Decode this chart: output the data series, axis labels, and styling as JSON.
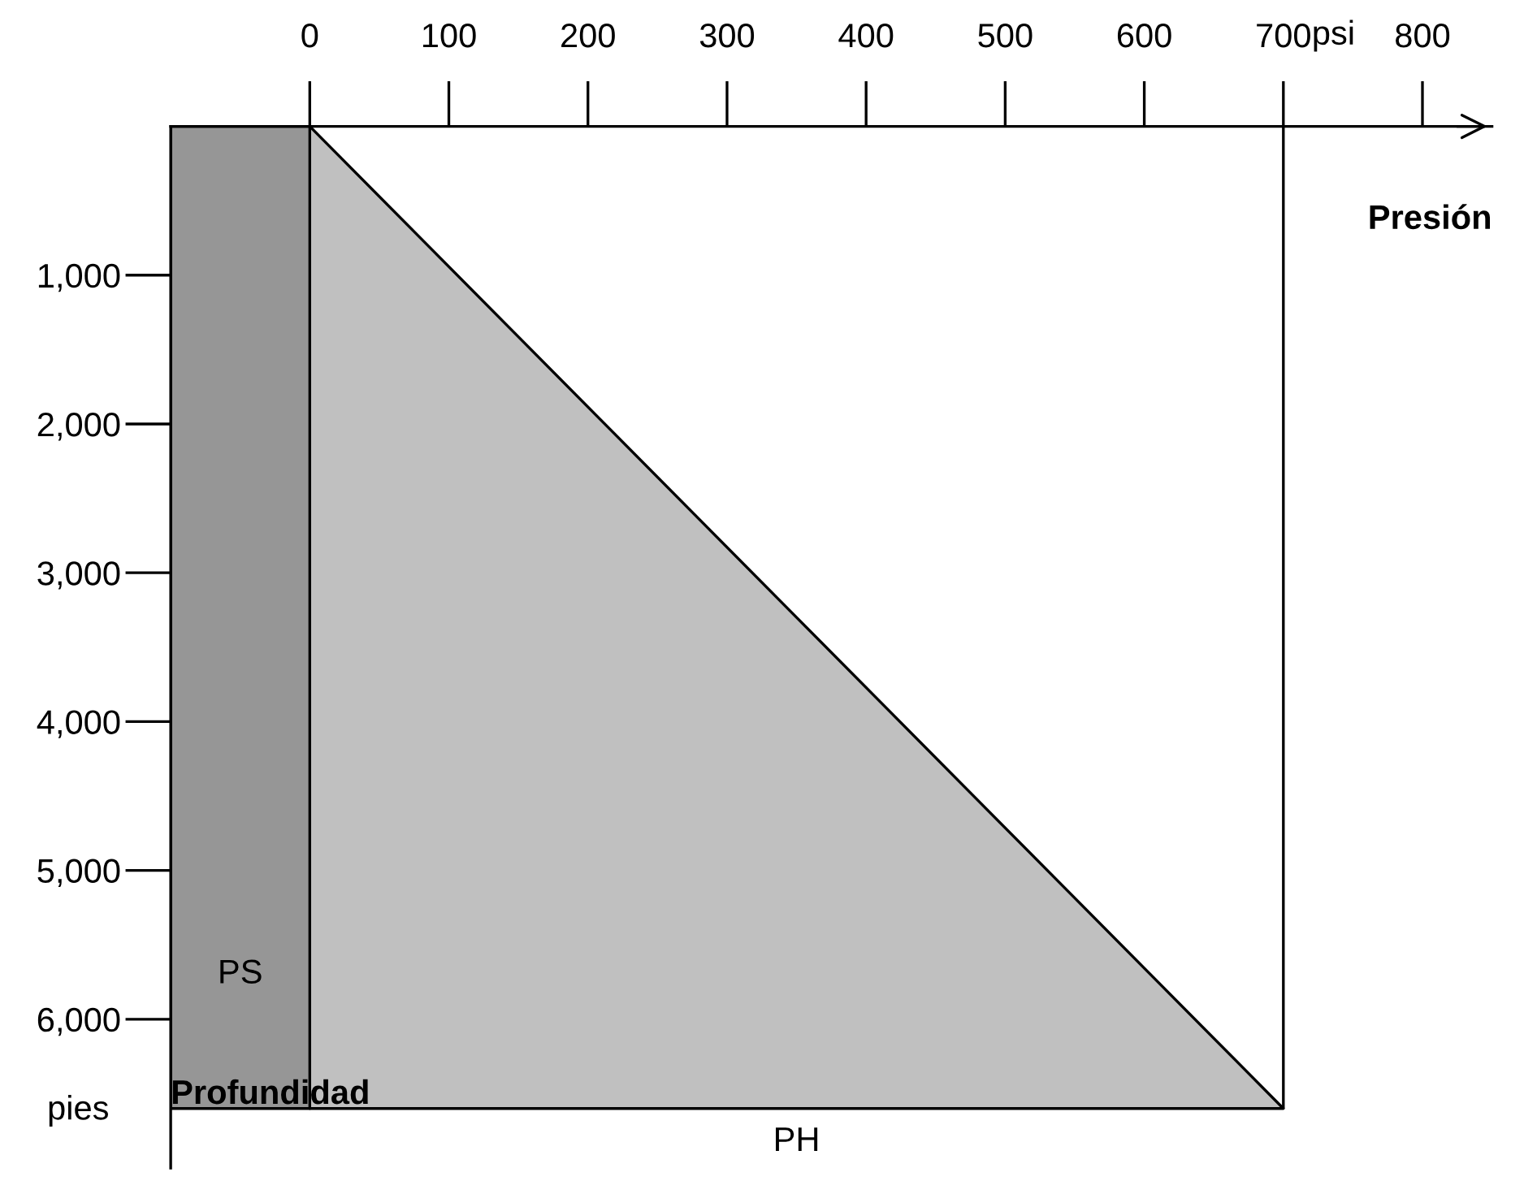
{
  "chart_data": {
    "type": "area",
    "xlabel": "Presión",
    "ylabel": "Profundidad",
    "annotations": [
      "pies",
      "psi"
    ],
    "series": [
      {
        "name": "PH",
        "color": "#c0c0c0",
        "x": [
          0,
          700
        ],
        "values": [
          0,
          6600
        ]
      }
    ],
    "xlim": [
      -100,
      850
    ],
    "xticks": [
      0,
      100,
      200,
      300,
      400,
      500,
      600,
      700,
      800
    ],
    "ylim": [
      7000,
      0
    ],
    "yticks": [
      {
        "value": 1000,
        "label": "1,000"
      },
      {
        "value": 2000,
        "label": "2,000"
      },
      {
        "value": 3000,
        "label": "3,000"
      },
      {
        "value": 4000,
        "label": "4,000"
      },
      {
        "value": 5000,
        "label": "5,000"
      },
      {
        "value": 6000,
        "label": "6,000"
      }
    ],
    "bands": [
      {
        "axis": "x",
        "from": -100,
        "to": 0,
        "label": "PS",
        "color": "#969696"
      }
    ],
    "ref_lines": [
      {
        "axis": "x",
        "value": 700,
        "color": "#000000"
      }
    ],
    "grid": false,
    "legend": false
  }
}
